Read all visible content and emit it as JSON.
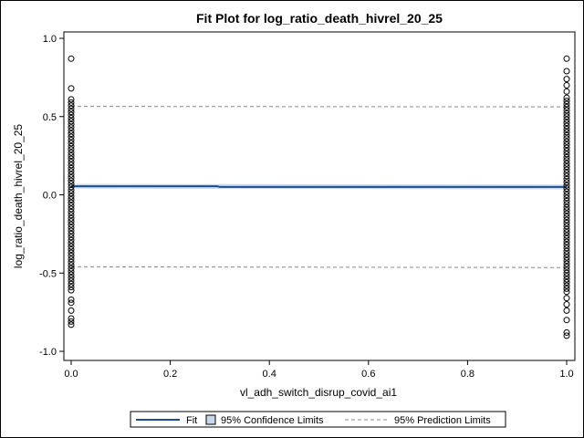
{
  "chart_data": {
    "type": "scatter",
    "title": "Fit Plot for log_ratio_death_hivrel_20_25",
    "xlabel": "vl_adh_switch_disrup_covid_ai1",
    "ylabel": "log_ratio_death_hivrel_20_25",
    "xlim": [
      -0.01,
      1.01
    ],
    "ylim": [
      -1.0,
      1.0
    ],
    "x_ticks": [
      0.0,
      0.2,
      0.4,
      0.6,
      0.8,
      1.0
    ],
    "x_tick_labels": [
      "0.0",
      "0.2",
      "0.4",
      "0.6",
      "0.8",
      "1.0"
    ],
    "y_ticks": [
      -1.0,
      -0.5,
      0.0,
      0.5,
      1.0
    ],
    "y_tick_labels": [
      "-1.0",
      "-0.5",
      "0.0",
      "0.5",
      "1.0"
    ],
    "grid": false,
    "legend_position": "bottom",
    "legend": [
      {
        "label": "Fit",
        "kind": "line"
      },
      {
        "label": "95% Confidence Limits",
        "kind": "band"
      },
      {
        "label": "95% Prediction Limits",
        "kind": "dashed"
      }
    ],
    "colors": {
      "fit": "#1f4e8c",
      "band": "#c9d7ea",
      "prediction": "#888888",
      "marker": "#000000"
    },
    "series": [
      {
        "x": 0.0,
        "y_values": [
          0.87,
          0.68,
          0.61,
          0.59,
          0.57,
          0.55,
          0.53,
          0.51,
          0.49,
          0.47,
          0.45,
          0.43,
          0.41,
          0.39,
          0.37,
          0.35,
          0.33,
          0.31,
          0.29,
          0.27,
          0.25,
          0.23,
          0.21,
          0.19,
          0.17,
          0.15,
          0.13,
          0.11,
          0.09,
          0.07,
          0.05,
          0.03,
          0.01,
          -0.01,
          -0.03,
          -0.05,
          -0.07,
          -0.09,
          -0.11,
          -0.13,
          -0.15,
          -0.17,
          -0.19,
          -0.21,
          -0.23,
          -0.25,
          -0.27,
          -0.29,
          -0.31,
          -0.33,
          -0.35,
          -0.37,
          -0.39,
          -0.41,
          -0.43,
          -0.45,
          -0.47,
          -0.49,
          -0.51,
          -0.53,
          -0.55,
          -0.57,
          -0.59,
          -0.61,
          -0.67,
          -0.69,
          -0.74,
          -0.79,
          -0.81,
          -0.83
        ]
      },
      {
        "x": 1.0,
        "y_values": [
          0.87,
          0.79,
          0.74,
          0.7,
          0.66,
          0.62,
          0.6,
          0.58,
          0.56,
          0.54,
          0.52,
          0.5,
          0.48,
          0.46,
          0.44,
          0.42,
          0.4,
          0.38,
          0.36,
          0.34,
          0.32,
          0.3,
          0.28,
          0.26,
          0.24,
          0.22,
          0.2,
          0.18,
          0.16,
          0.14,
          0.12,
          0.1,
          0.08,
          0.06,
          0.04,
          0.02,
          0.0,
          -0.02,
          -0.04,
          -0.06,
          -0.08,
          -0.1,
          -0.12,
          -0.14,
          -0.16,
          -0.18,
          -0.2,
          -0.22,
          -0.24,
          -0.26,
          -0.28,
          -0.3,
          -0.32,
          -0.34,
          -0.36,
          -0.38,
          -0.4,
          -0.42,
          -0.44,
          -0.46,
          -0.48,
          -0.5,
          -0.52,
          -0.54,
          -0.56,
          -0.58,
          -0.6,
          -0.62,
          -0.66,
          -0.7,
          -0.74,
          -0.8,
          -0.88,
          -0.9
        ]
      }
    ],
    "fit_line": {
      "x": [
        0.0,
        0.295,
        0.3,
        1.0
      ],
      "y": [
        0.055,
        0.055,
        0.05,
        0.05
      ]
    },
    "confidence_band": {
      "x": [
        0.0,
        1.0
      ],
      "lower": [
        0.04,
        0.035
      ],
      "upper": [
        0.07,
        0.065
      ]
    },
    "prediction_limits": {
      "x": [
        0.0,
        1.0
      ],
      "upper": [
        0.565,
        0.562
      ],
      "lower": [
        -0.46,
        -0.465
      ]
    }
  }
}
